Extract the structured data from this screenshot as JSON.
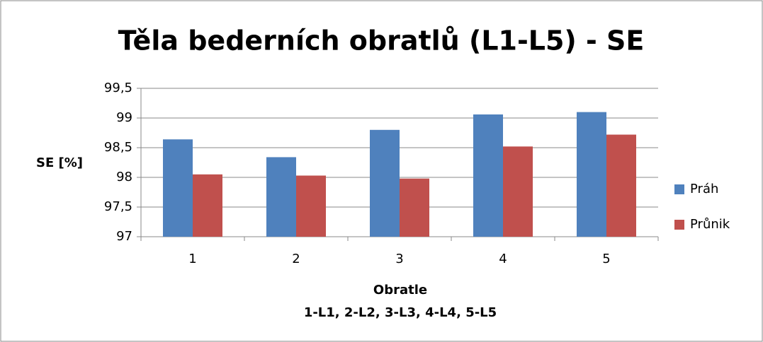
{
  "chart_data": {
    "type": "bar",
    "title": "Těla bederních obratlů (L1-L5) - SE",
    "ylabel": "SE [%]",
    "xlabel": [
      "Obratle",
      "1-L1, 2-L2, 3-L3, 4-L4, 5-L5"
    ],
    "categories": [
      "1",
      "2",
      "3",
      "4",
      "5"
    ],
    "series": [
      {
        "name": "Práh",
        "color": "#4f81bd",
        "values": [
          98.64,
          98.34,
          98.8,
          99.06,
          99.1
        ]
      },
      {
        "name": "Průnik",
        "color": "#c0504d",
        "values": [
          98.05,
          98.03,
          97.98,
          98.52,
          98.72
        ]
      }
    ],
    "ylim": [
      97,
      99.5
    ],
    "yticks": [
      97,
      {
        "value": 97.5,
        "label": "97,5"
      },
      98,
      {
        "value": 98.5,
        "label": "98,5"
      },
      99,
      {
        "value": 99.5,
        "label": "99,5"
      }
    ],
    "grid": true,
    "legend": "right"
  }
}
